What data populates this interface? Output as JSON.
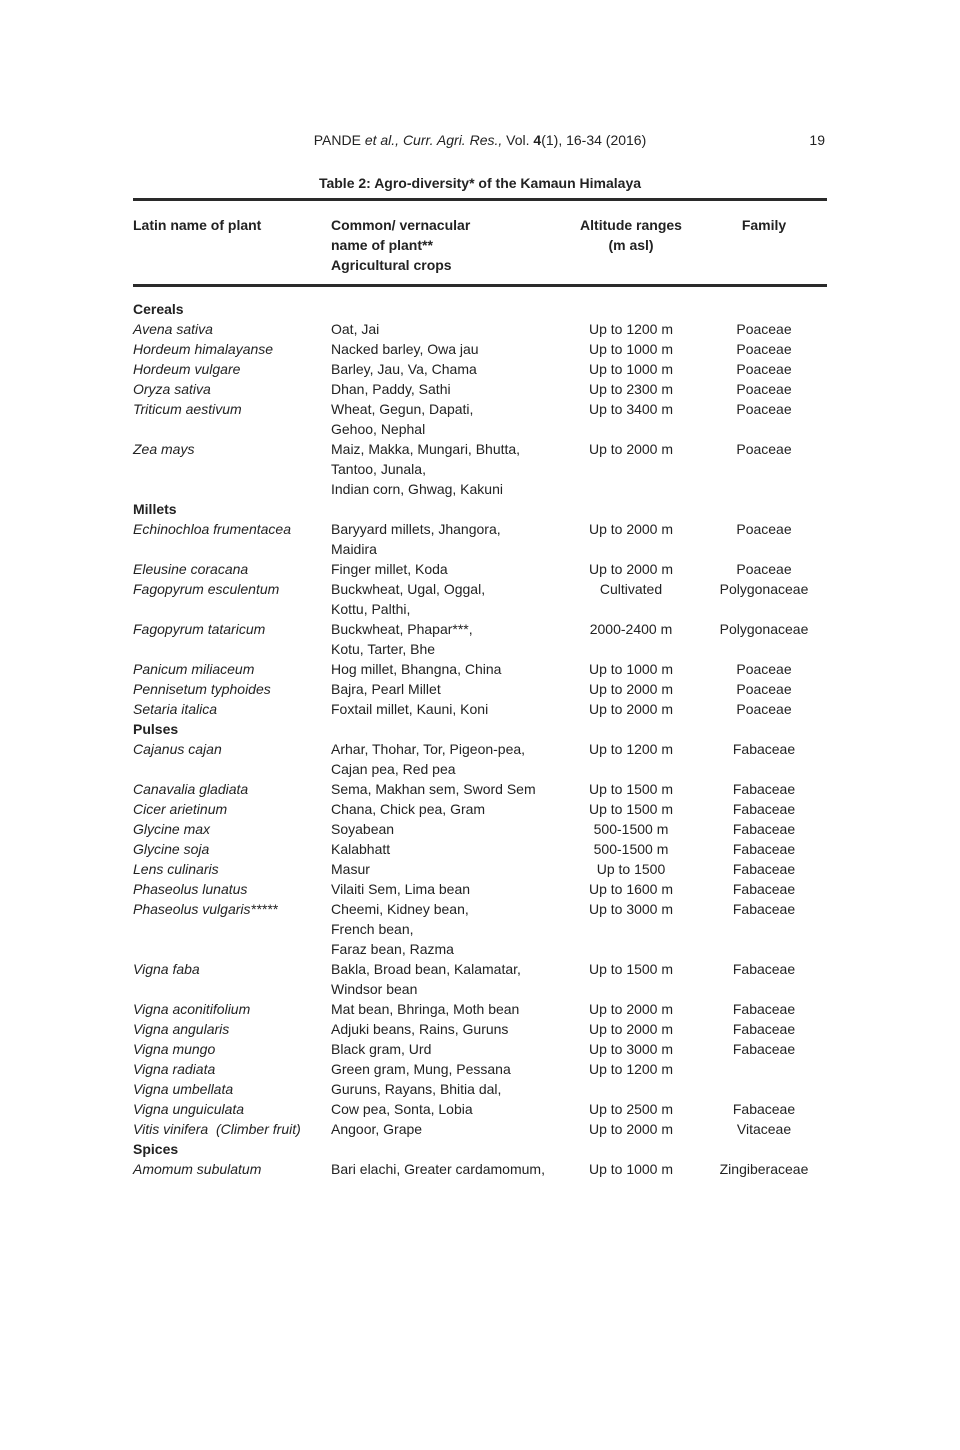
{
  "page": {
    "journal": {
      "author": "PANDE",
      "italic": "et al., Curr. Agri. Res.,",
      "vol_label": "Vol.",
      "vol_bold": "4",
      "vol_rest": "(1), 16-34 (2016)",
      "page_number": "19"
    },
    "title": "Table 2: Agro-diversity* of the Kamaun Himalaya"
  },
  "table": {
    "columns": {
      "latin": "Latin name of plant",
      "common": [
        "Common/ vernacular",
        "name of plant**",
        "Agricultural crops"
      ],
      "altitude": [
        "Altitude ranges",
        "(m asl)"
      ],
      "family": "Family"
    },
    "rows": [
      {
        "kind": "section",
        "label": "Cereals"
      },
      {
        "kind": "plant",
        "latin": "Avena sativa",
        "common": [
          "Oat, Jai"
        ],
        "altitude": "Up to 1200 m",
        "family": "Poaceae"
      },
      {
        "kind": "plant",
        "latin": "Hordeum himalayanse",
        "common": [
          "Nacked barley, Owa jau"
        ],
        "altitude": "Up to 1000 m",
        "family": "Poaceae"
      },
      {
        "kind": "plant",
        "latin": "Hordeum vulgare",
        "common": [
          "Barley, Jau, Va, Chama"
        ],
        "altitude": "Up to 1000 m",
        "family": "Poaceae"
      },
      {
        "kind": "plant",
        "latin": "Oryza sativa",
        "common": [
          "Dhan, Paddy, Sathi"
        ],
        "altitude": "Up to 2300 m",
        "family": "Poaceae"
      },
      {
        "kind": "plant",
        "latin": "Triticum aestivum",
        "common": [
          "Wheat, Gegun, Dapati,",
          "Gehoo, Nephal"
        ],
        "altitude": "Up to 3400 m",
        "family": "Poaceae"
      },
      {
        "kind": "plant",
        "latin": "Zea mays",
        "common": [
          "Maiz, Makka, Mungari, Bhutta,",
          "Tantoo, Junala,",
          "Indian corn, Ghwag, Kakuni"
        ],
        "altitude": "Up to 2000 m",
        "family": "Poaceae"
      },
      {
        "kind": "section",
        "label": "Millets"
      },
      {
        "kind": "plant",
        "latin": "Echinochloa frumentacea",
        "common": [
          "Baryyard millets, Jhangora,",
          "Maidira"
        ],
        "altitude": "Up to 2000 m",
        "family": "Poaceae"
      },
      {
        "kind": "plant",
        "latin": "Eleusine coracana",
        "common": [
          "Finger millet, Koda"
        ],
        "altitude": "Up to 2000 m",
        "family": "Poaceae"
      },
      {
        "kind": "plant",
        "latin": "Fagopyrum esculentum",
        "common": [
          "Buckwheat, Ugal, Oggal,",
          "Kottu, Palthi,"
        ],
        "altitude": "Cultivated",
        "family": "Polygonaceae"
      },
      {
        "kind": "plant",
        "latin": "Fagopyrum tataricum",
        "common": [
          "Buckwheat, Phapar***,",
          "Kotu, Tarter, Bhe"
        ],
        "altitude": "2000-2400 m",
        "family": "Polygonaceae"
      },
      {
        "kind": "plant",
        "latin": "Panicum miliaceum",
        "common": [
          "Hog millet, Bhangna, China"
        ],
        "altitude": "Up to 1000 m",
        "family": "Poaceae"
      },
      {
        "kind": "plant",
        "latin": "Pennisetum typhoides",
        "common": [
          "Bajra, Pearl Millet"
        ],
        "altitude": "Up to 2000 m",
        "family": "Poaceae"
      },
      {
        "kind": "plant",
        "latin": "Setaria italica",
        "common": [
          "Foxtail millet, Kauni, Koni"
        ],
        "altitude": "Up to 2000 m",
        "family": "Poaceae"
      },
      {
        "kind": "section",
        "label": "Pulses"
      },
      {
        "kind": "plant",
        "latin": "Cajanus cajan",
        "common": [
          "Arhar, Thohar, Tor, Pigeon-pea,",
          "Cajan pea, Red pea"
        ],
        "altitude": "Up to 1200 m",
        "family": "Fabaceae"
      },
      {
        "kind": "plant",
        "latin": "Canavalia gladiata",
        "common": [
          "Sema, Makhan sem, Sword Sem"
        ],
        "altitude": "Up to 1500 m",
        "family": "Fabaceae"
      },
      {
        "kind": "plant",
        "latin": "Cicer arietinum",
        "common": [
          "Chana, Chick pea, Gram"
        ],
        "altitude": "Up to 1500 m",
        "family": "Fabaceae"
      },
      {
        "kind": "plant",
        "latin": "Glycine max",
        "common": [
          "Soyabean"
        ],
        "altitude": "500-1500 m",
        "family": "Fabaceae"
      },
      {
        "kind": "plant",
        "latin": "Glycine soja",
        "common": [
          "Kalabhatt"
        ],
        "altitude": "500-1500 m",
        "family": "Fabaceae"
      },
      {
        "kind": "plant",
        "latin": "Lens culinaris",
        "common": [
          "Masur"
        ],
        "altitude": "Up to 1500",
        "family": "Fabaceae"
      },
      {
        "kind": "plant",
        "latin": "Phaseolus lunatus",
        "common": [
          "Vilaiti Sem, Lima bean"
        ],
        "altitude": "Up to 1600 m",
        "family": "Fabaceae"
      },
      {
        "kind": "plant",
        "latin": "Phaseolus vulgaris*****",
        "common": [
          "Cheemi, Kidney bean,",
          "French bean,",
          "Faraz bean, Razma"
        ],
        "altitude": "Up to 3000 m",
        "family": "Fabaceae"
      },
      {
        "kind": "plant",
        "latin": "Vigna faba",
        "common": [
          "Bakla, Broad bean, Kalamatar,",
          "Windsor bean"
        ],
        "altitude": "Up to 1500 m",
        "family": "Fabaceae"
      },
      {
        "kind": "plant",
        "latin": "Vigna aconitifolium",
        "common": [
          "Mat bean, Bhringa, Moth bean"
        ],
        "altitude": "Up to 2000 m",
        "family": "Fabaceae"
      },
      {
        "kind": "plant",
        "latin": "Vigna angularis",
        "common": [
          "Adjuki beans, Rains, Guruns"
        ],
        "altitude": "Up to 2000 m",
        "family": "Fabaceae"
      },
      {
        "kind": "plant",
        "latin": "Vigna mungo",
        "common": [
          "Black gram, Urd"
        ],
        "altitude": "Up to 3000 m",
        "family": "Fabaceae"
      },
      {
        "kind": "plant",
        "latin": "Vigna radiata",
        "common": [
          "Green gram, Mung, Pessana"
        ],
        "altitude": "Up to 1200 m",
        "family": ""
      },
      {
        "kind": "plant",
        "latin": "Vigna umbellata",
        "common": [
          "Guruns, Rayans, Bhitia dal,"
        ],
        "altitude": "",
        "family": ""
      },
      {
        "kind": "plant",
        "latin": "Vigna unguiculata",
        "common": [
          "Cow pea, Sonta, Lobia"
        ],
        "altitude": "Up to 2500 m",
        "family": "Fabaceae"
      },
      {
        "kind": "plant",
        "latin": "Vitis vinifera  (Climber fruit)",
        "common": [
          "Angoor, Grape"
        ],
        "altitude": "Up to 2000 m",
        "family": "Vitaceae"
      },
      {
        "kind": "section",
        "label": "Spices"
      },
      {
        "kind": "plant",
        "latin": "Amomum subulatum",
        "common": [
          "Bari elachi, Greater cardamomum,"
        ],
        "altitude": "Up to 1000 m",
        "family": "Zingiberaceae"
      }
    ]
  }
}
